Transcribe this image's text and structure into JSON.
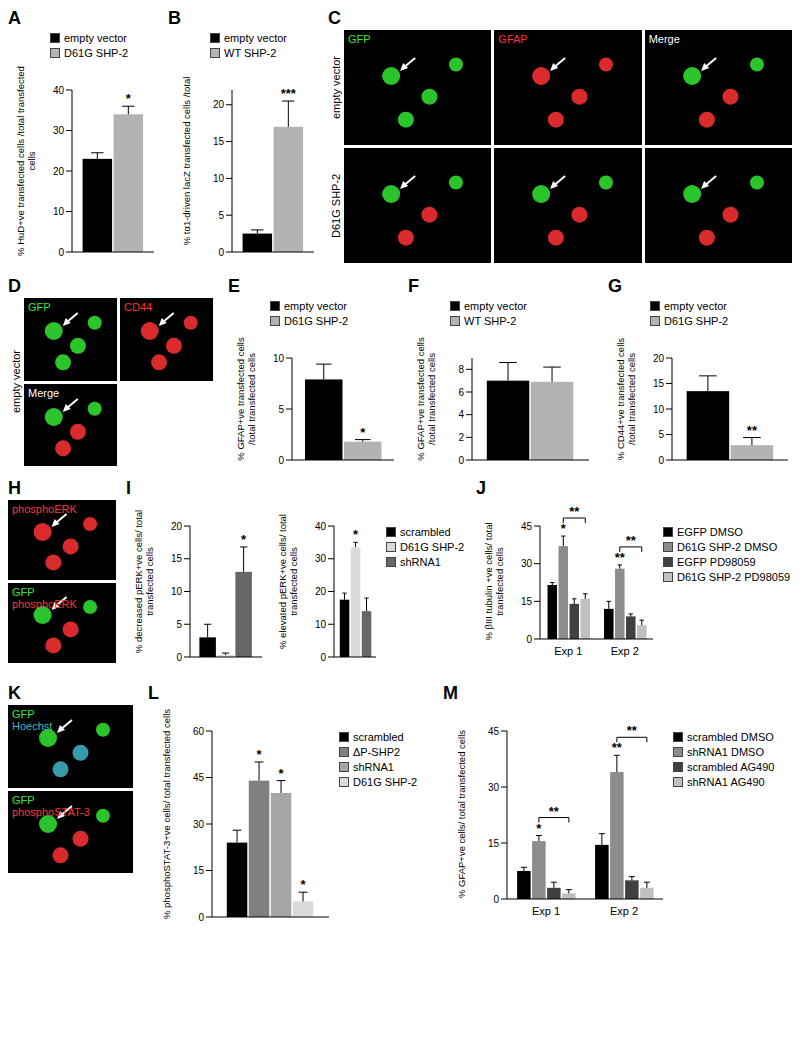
{
  "chart_data": [
    {
      "panel": "A",
      "type": "bar",
      "y_label": "% HuD+ve transfected cells /total transfected cells",
      "categories": [
        null
      ],
      "series": [
        {
          "name": "empty vector",
          "color": "#000000",
          "values": [
            23
          ],
          "errors": [
            1.5
          ]
        },
        {
          "name": "D61G SHP-2",
          "color": "#b3b3b3",
          "values": [
            34
          ],
          "errors": [
            2
          ],
          "annotations": [
            "*"
          ]
        }
      ],
      "ylim": [
        0,
        40
      ],
      "yticks": [
        0,
        10,
        20,
        30,
        40
      ],
      "legend": "top"
    },
    {
      "panel": "B",
      "type": "bar",
      "y_label": "% tα1-driven lacZ transfected cells /total",
      "categories": [
        null
      ],
      "series": [
        {
          "name": "empty vector",
          "color": "#000000",
          "values": [
            2.5
          ],
          "errors": [
            0.5
          ]
        },
        {
          "name": "WT SHP-2",
          "color": "#b3b3b3",
          "values": [
            17
          ],
          "errors": [
            3.5
          ],
          "annotations": [
            "***"
          ]
        }
      ],
      "ylim": [
        0,
        22
      ],
      "yticks": [
        0,
        5,
        10,
        15,
        20
      ],
      "legend": "top"
    },
    {
      "panel": "E",
      "type": "bar",
      "y_label": "% GFAP+ve transfected cells /total transfected cells",
      "categories": [
        null
      ],
      "series": [
        {
          "name": "empty vector",
          "color": "#000000",
          "values": [
            7.9
          ],
          "errors": [
            1.5
          ]
        },
        {
          "name": "D61G SHP-2",
          "color": "#b3b3b3",
          "values": [
            1.8
          ],
          "errors": [
            0.2
          ],
          "annotations": [
            "*"
          ]
        }
      ],
      "ylim": [
        0,
        10
      ],
      "yticks": [
        0,
        5,
        10
      ],
      "legend": "top"
    },
    {
      "panel": "F",
      "type": "bar",
      "y_label": "% GFAP+ve transfected cells /total transfected cells",
      "categories": [
        null
      ],
      "series": [
        {
          "name": "empty vector",
          "color": "#000000",
          "values": [
            7
          ],
          "errors": [
            1.6
          ]
        },
        {
          "name": "WT SHP-2",
          "color": "#b3b3b3",
          "values": [
            6.9
          ],
          "errors": [
            1.3
          ]
        }
      ],
      "ylim": [
        0,
        9
      ],
      "yticks": [
        0,
        2,
        4,
        6,
        8
      ],
      "legend": "top"
    },
    {
      "panel": "G",
      "type": "bar",
      "y_label": "% CD44+ve transfected cells /total transfected cells",
      "categories": [
        null
      ],
      "series": [
        {
          "name": "empty vector",
          "color": "#000000",
          "values": [
            13.5
          ],
          "errors": [
            3
          ]
        },
        {
          "name": "D61G SHP-2",
          "color": "#b3b3b3",
          "values": [
            2.9
          ],
          "errors": [
            1.5
          ],
          "annotations": [
            "**"
          ]
        }
      ],
      "ylim": [
        0,
        20
      ],
      "yticks": [
        0,
        5,
        10,
        15,
        20
      ],
      "legend": "top"
    },
    {
      "panel": "I",
      "type": "bar",
      "y_label": "% decreased pERK+ve cells/ total transfected cells",
      "categories": [
        null
      ],
      "series": [
        {
          "name": "scrambled",
          "color": "#000000",
          "values": [
            3
          ],
          "errors": [
            2
          ]
        },
        {
          "name": "D61G SHP-2",
          "color": "#d9d9d9",
          "values": [
            0.3
          ],
          "errors": [
            0.3
          ]
        },
        {
          "name": "shRNA1",
          "color": "#666666",
          "values": [
            13
          ],
          "errors": [
            3.8
          ],
          "annotations": [
            "*"
          ]
        }
      ],
      "ylim": [
        0,
        20
      ],
      "yticks": [
        0,
        5,
        10,
        15,
        20
      ]
    },
    {
      "type": "bar",
      "y_label": "% elevated pERK+ve cells/ total transfected cells",
      "categories": [
        null
      ],
      "series": [
        {
          "name": "scrambled",
          "color": "#000000",
          "values": [
            17.5
          ],
          "errors": [
            2
          ]
        },
        {
          "name": "D61G SHP-2",
          "color": "#d9d9d9",
          "values": [
            33.5
          ],
          "errors": [
            1.5
          ],
          "annotations": [
            "*"
          ]
        },
        {
          "name": "shRNA1",
          "color": "#666666",
          "values": [
            14
          ],
          "errors": [
            4
          ]
        }
      ],
      "ylim": [
        0,
        40
      ],
      "yticks": [
        0,
        10,
        20,
        30,
        40
      ],
      "legend": "right"
    },
    {
      "panel": "J",
      "type": "bar",
      "y_label": "% βIII tubulin +ve cells/ total transfected cells",
      "categories": [
        "Exp 1",
        "Exp 2"
      ],
      "series": [
        {
          "name": "EGFP DMSO",
          "color": "#000000",
          "values": [
            21.5,
            12
          ],
          "errors": [
            1,
            3
          ]
        },
        {
          "name": "D61G SHP-2 DMSO",
          "color": "#8c8c8c",
          "values": [
            37,
            28
          ],
          "errors": [
            4,
            1.5
          ],
          "annotations": [
            "*",
            "**"
          ]
        },
        {
          "name": "EGFP PD98059",
          "color": "#404040",
          "values": [
            14,
            9
          ],
          "errors": [
            2,
            1
          ]
        },
        {
          "name": "D61G SHP-2 PD98059",
          "color": "#bfbfbf",
          "values": [
            16,
            5.5
          ],
          "errors": [
            2,
            2
          ]
        }
      ],
      "ylim": [
        0,
        45
      ],
      "yticks": [
        0,
        15,
        30,
        45
      ],
      "legend": "right",
      "brackets": [
        {
          "category": "Exp 1",
          "from": "D61G SHP-2 DMSO",
          "to": "D61G SHP-2 PD98059",
          "label": "**"
        },
        {
          "category": "Exp 2",
          "from": "D61G SHP-2 DMSO",
          "to": "D61G SHP-2 PD98059",
          "label": "**"
        }
      ]
    },
    {
      "panel": "L",
      "type": "bar",
      "y_label": "% phosphoSTAT-3+ve cells/ total transfected cells",
      "categories": [
        null
      ],
      "series": [
        {
          "name": "scrambled",
          "color": "#000000",
          "values": [
            24
          ],
          "errors": [
            4
          ]
        },
        {
          "name": "ΔP-SHP2",
          "color": "#7f7f7f",
          "values": [
            44
          ],
          "errors": [
            6
          ],
          "annotations": [
            "*"
          ]
        },
        {
          "name": "shRNA1",
          "color": "#a6a6a6",
          "values": [
            40
          ],
          "errors": [
            4
          ],
          "annotations": [
            "*"
          ]
        },
        {
          "name": "D61G SHP-2",
          "color": "#d9d9d9",
          "values": [
            5
          ],
          "errors": [
            3
          ],
          "annotations": [
            "*"
          ]
        }
      ],
      "ylim": [
        0,
        60
      ],
      "yticks": [
        0,
        15,
        30,
        45,
        60
      ],
      "legend": "right"
    },
    {
      "panel": "M",
      "type": "bar",
      "y_label": "% GFAP+ve cells/ total transfected cells",
      "categories": [
        "Exp 1",
        "Exp 2"
      ],
      "series": [
        {
          "name": "scrambled DMSO",
          "color": "#000000",
          "values": [
            7.5,
            14.5
          ],
          "errors": [
            1,
            3
          ]
        },
        {
          "name": "shRNA1 DMSO",
          "color": "#8c8c8c",
          "values": [
            15.5,
            34
          ],
          "errors": [
            1.5,
            4.5
          ],
          "annotations": [
            "*",
            "**"
          ]
        },
        {
          "name": "scrambled AG490",
          "color": "#404040",
          "values": [
            3,
            5
          ],
          "errors": [
            1.5,
            1
          ]
        },
        {
          "name": "shRNA1 AG490",
          "color": "#bfbfbf",
          "values": [
            1.5,
            3
          ],
          "errors": [
            1,
            1.5
          ]
        }
      ],
      "ylim": [
        0,
        45
      ],
      "yticks": [
        0,
        15,
        30,
        45
      ],
      "legend": "right",
      "brackets": [
        {
          "category": "Exp 1",
          "from": "shRNA1 DMSO",
          "to": "shRNA1 AG490",
          "label": "**"
        },
        {
          "category": "Exp 2",
          "from": "shRNA1 DMSO",
          "to": "shRNA1 AG490",
          "label": "**"
        }
      ]
    }
  ],
  "image_panels": [
    {
      "panel": "C",
      "rows": [
        {
          "label": "empty vector",
          "tiles": [
            {
              "labels": [
                {
                  "text": "GFP",
                  "color": "#33e633"
                }
              ]
            },
            {
              "labels": [
                {
                  "text": "GFAP",
                  "color": "#ff3333"
                }
              ]
            },
            {
              "labels": [
                {
                  "text": "Merge",
                  "color": "#ffffff"
                }
              ]
            }
          ]
        },
        {
          "label": "D61G SHP-2",
          "tiles": [
            {
              "labels": []
            },
            {
              "labels": []
            },
            {
              "labels": []
            }
          ]
        }
      ]
    },
    {
      "panel": "D",
      "rows": [
        {
          "label": "empty vector",
          "tiles": [
            {
              "labels": [
                {
                  "text": "GFP",
                  "color": "#33e633"
                }
              ]
            },
            {
              "labels": [
                {
                  "text": "CD44",
                  "color": "#ff3333"
                }
              ]
            },
            {
              "labels": [
                {
                  "text": "Merge",
                  "color": "#ffffff"
                }
              ]
            }
          ]
        }
      ]
    },
    {
      "panel": "H",
      "rows": [
        {
          "tiles": [
            {
              "labels": [
                {
                  "text": "phosphoERK",
                  "color": "#ff3333"
                }
              ]
            },
            {
              "labels": [
                {
                  "text": "GFP",
                  "color": "#33e633"
                },
                {
                  "text": "phosphoERK",
                  "color": "#ff3333"
                }
              ]
            }
          ]
        }
      ]
    },
    {
      "panel": "K",
      "rows": [
        {
          "tiles": [
            {
              "labels": [
                {
                  "text": "GFP",
                  "color": "#33e633"
                },
                {
                  "text": "Hoechst",
                  "color": "#3fb6c8"
                }
              ]
            },
            {
              "labels": [
                {
                  "text": "GFP",
                  "color": "#33e633"
                },
                {
                  "text": "phosphoSTAT-3",
                  "color": "#ff3333"
                }
              ]
            }
          ]
        }
      ]
    }
  ]
}
